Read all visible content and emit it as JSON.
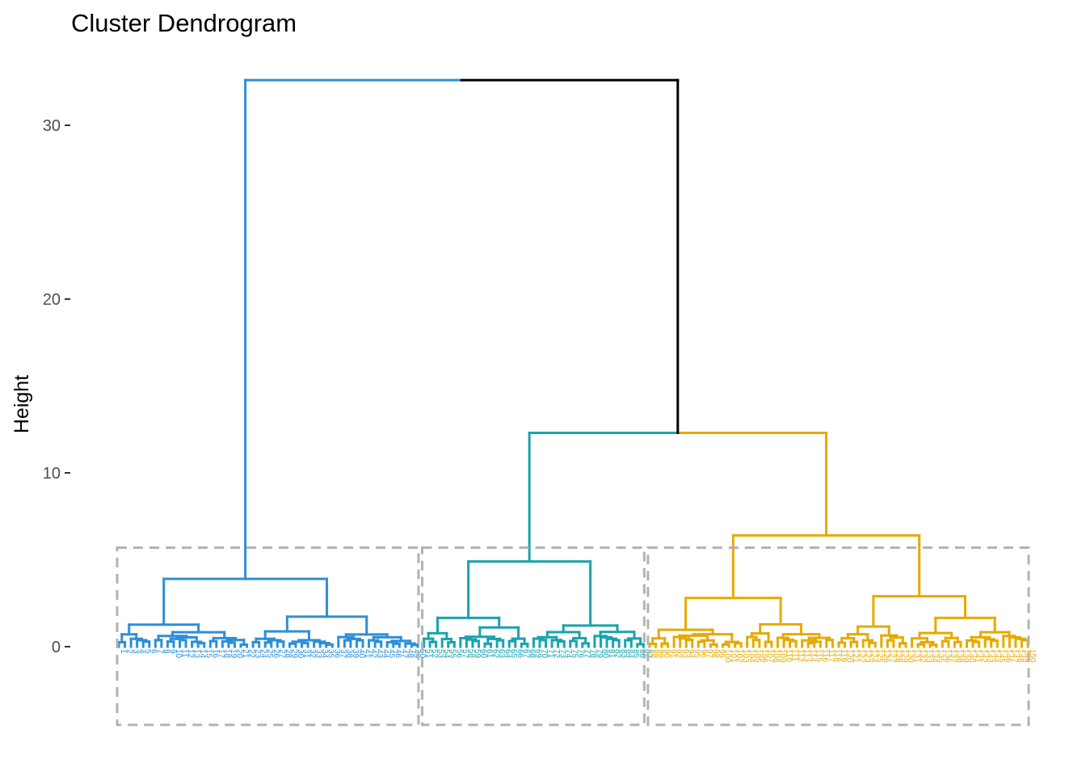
{
  "chart_data": {
    "type": "dendrogram",
    "title": "Cluster Dendrogram",
    "xlabel": "",
    "ylabel": "Height",
    "ylim": [
      -4.6,
      32.6
    ],
    "yticks": [
      0,
      10,
      20,
      30
    ],
    "grid": false,
    "legend": "none",
    "leaf_count": 150,
    "clusters": [
      {
        "id": 1,
        "color": "#2E8FD8",
        "leaf_range": [
          1,
          50
        ],
        "merge_height": 3.9,
        "rect": {
          "leaf_from": 1,
          "leaf_to": 50,
          "y_bottom": -4.5,
          "y_top": 5.7
        }
      },
      {
        "id": 2,
        "color": "#1AA3AD",
        "leaf_range": [
          51,
          87
        ],
        "merge_height": 4.9,
        "rect": {
          "leaf_from": 51,
          "leaf_to": 87,
          "y_bottom": -4.5,
          "y_top": 5.7
        }
      },
      {
        "id": 3,
        "color": "#E5AA00",
        "leaf_range": [
          88,
          150
        ],
        "merge_height": 6.4,
        "rect": {
          "leaf_from": 88,
          "leaf_to": 150,
          "y_bottom": -4.5,
          "y_top": 5.7
        }
      }
    ],
    "merges": [
      {
        "height": 32.6,
        "left": "cluster 1",
        "right": "clusters 2+3",
        "color": "#000000"
      },
      {
        "height": 12.3,
        "left": "cluster 2",
        "right": "cluster 3"
      },
      {
        "height": 3.9,
        "within": "cluster 1"
      },
      {
        "height": 4.9,
        "within": "cluster 2"
      },
      {
        "height": 6.4,
        "within": "cluster 3"
      }
    ],
    "rect_style": {
      "color": "#b3b3b3",
      "dash": "dashed"
    }
  }
}
